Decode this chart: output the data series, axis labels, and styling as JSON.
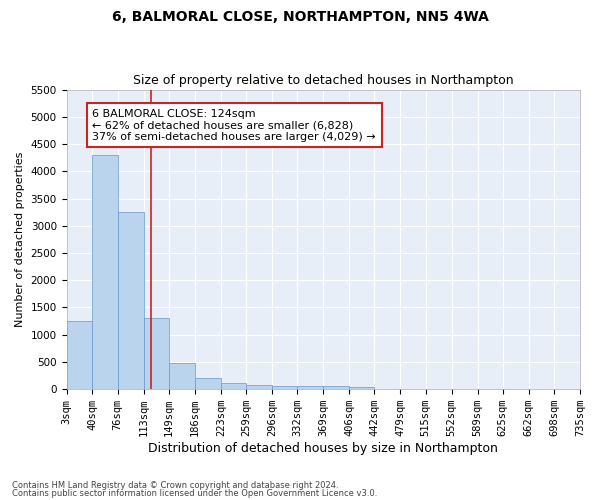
{
  "title": "6, BALMORAL CLOSE, NORTHAMPTON, NN5 4WA",
  "subtitle": "Size of property relative to detached houses in Northampton",
  "xlabel": "Distribution of detached houses by size in Northampton",
  "ylabel": "Number of detached properties",
  "footnote1": "Contains HM Land Registry data © Crown copyright and database right 2024.",
  "footnote2": "Contains public sector information licensed under the Open Government Licence v3.0.",
  "annotation_line1": "6 BALMORAL CLOSE: 124sqm",
  "annotation_line2": "← 62% of detached houses are smaller (6,828)",
  "annotation_line3": "37% of semi-detached houses are larger (4,029) →",
  "bar_color": "#bad4ee",
  "bar_edge_color": "#6699cc",
  "highlight_color": "#cc2222",
  "background_color": "#e8eef8",
  "grid_color": "#ffffff",
  "ylim": [
    0,
    5500
  ],
  "yticks": [
    0,
    500,
    1000,
    1500,
    2000,
    2500,
    3000,
    3500,
    4000,
    4500,
    5000,
    5500
  ],
  "property_size_sqm": 124,
  "bin_edges": [
    3,
    40,
    76,
    113,
    149,
    186,
    223,
    259,
    296,
    332,
    369,
    406,
    442,
    479,
    515,
    552,
    589,
    625,
    662,
    698,
    735
  ],
  "bar_heights": [
    1250,
    4300,
    3250,
    1300,
    480,
    210,
    110,
    80,
    65,
    55,
    50,
    45,
    0,
    0,
    0,
    0,
    0,
    0,
    0,
    0
  ],
  "title_fontsize": 10,
  "subtitle_fontsize": 9,
  "xlabel_fontsize": 9,
  "ylabel_fontsize": 8,
  "tick_fontsize": 7.5,
  "annot_fontsize": 8
}
